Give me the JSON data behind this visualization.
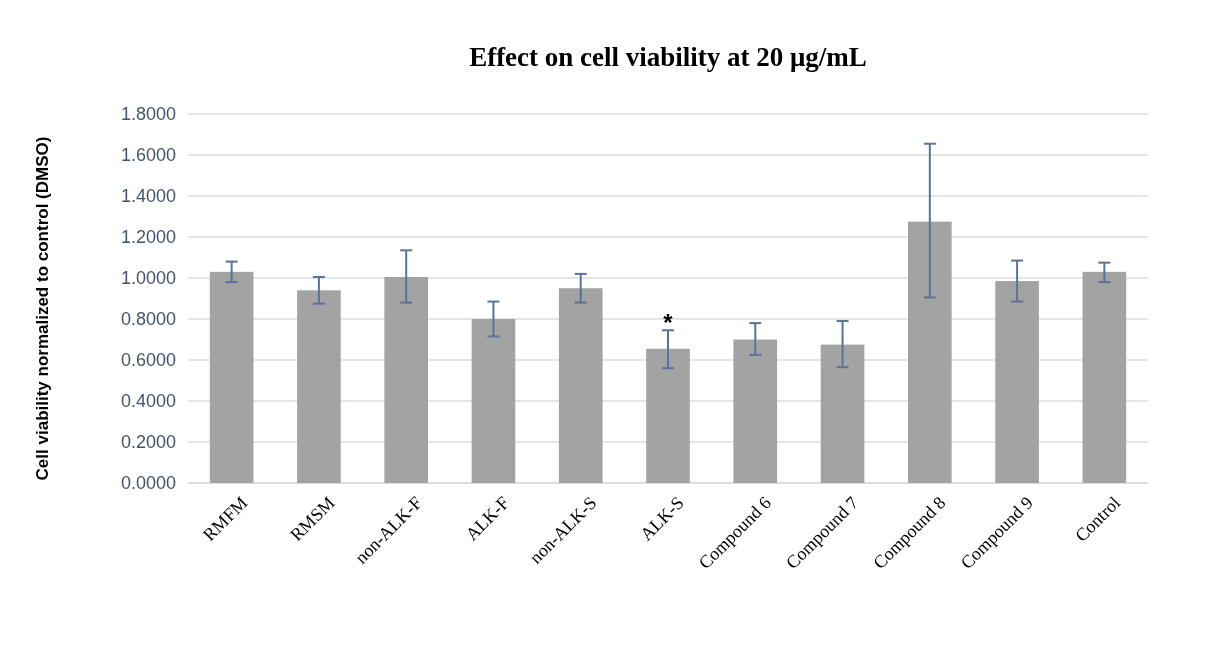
{
  "chart_data": {
    "type": "bar",
    "title": "Effect on cell viability at 20 μg/mL",
    "ylabel": "Cell viability normalized to control (DMSO)",
    "categories": [
      "RMFM",
      "RMSM",
      "non-ALK-F",
      "ALK-F",
      "non-ALK-S",
      "ALK-S",
      "Compound 6",
      "Compound 7",
      "Compound 8",
      "Compound 9",
      "Control"
    ],
    "values": [
      1.03,
      0.94,
      1.005,
      0.8,
      0.95,
      0.655,
      0.7,
      0.675,
      1.275,
      0.985,
      1.03
    ],
    "errors": [
      [
        0.98,
        1.08
      ],
      [
        0.875,
        1.005
      ],
      [
        0.88,
        1.135
      ],
      [
        0.715,
        0.885
      ],
      [
        0.88,
        1.02
      ],
      [
        0.56,
        0.745
      ],
      [
        0.625,
        0.78
      ],
      [
        0.565,
        0.79
      ],
      [
        0.905,
        1.655
      ],
      [
        0.885,
        1.085
      ],
      [
        0.98,
        1.075
      ]
    ],
    "color": "#a3a3a3",
    "ylim": [
      0,
      1.8
    ],
    "yticks": [
      {
        "value": 0,
        "label": "0.0000"
      },
      {
        "value": 0.2,
        "label": "0.2000"
      },
      {
        "value": 0.4,
        "label": "0.4000"
      },
      {
        "value": 0.6,
        "label": "0.6000"
      },
      {
        "value": 0.8,
        "label": "0.8000"
      },
      {
        "value": 1,
        "label": "1.0000"
      },
      {
        "value": 1.2,
        "label": "1.2000"
      },
      {
        "value": 1.4,
        "label": "1.4000"
      },
      {
        "value": 1.6,
        "label": "1.6000"
      },
      {
        "value": 1.8,
        "label": "1.8000"
      }
    ],
    "grid": true,
    "annotations": [
      {
        "text": "*",
        "x": "ALK-S",
        "y": 0.655
      }
    ]
  }
}
